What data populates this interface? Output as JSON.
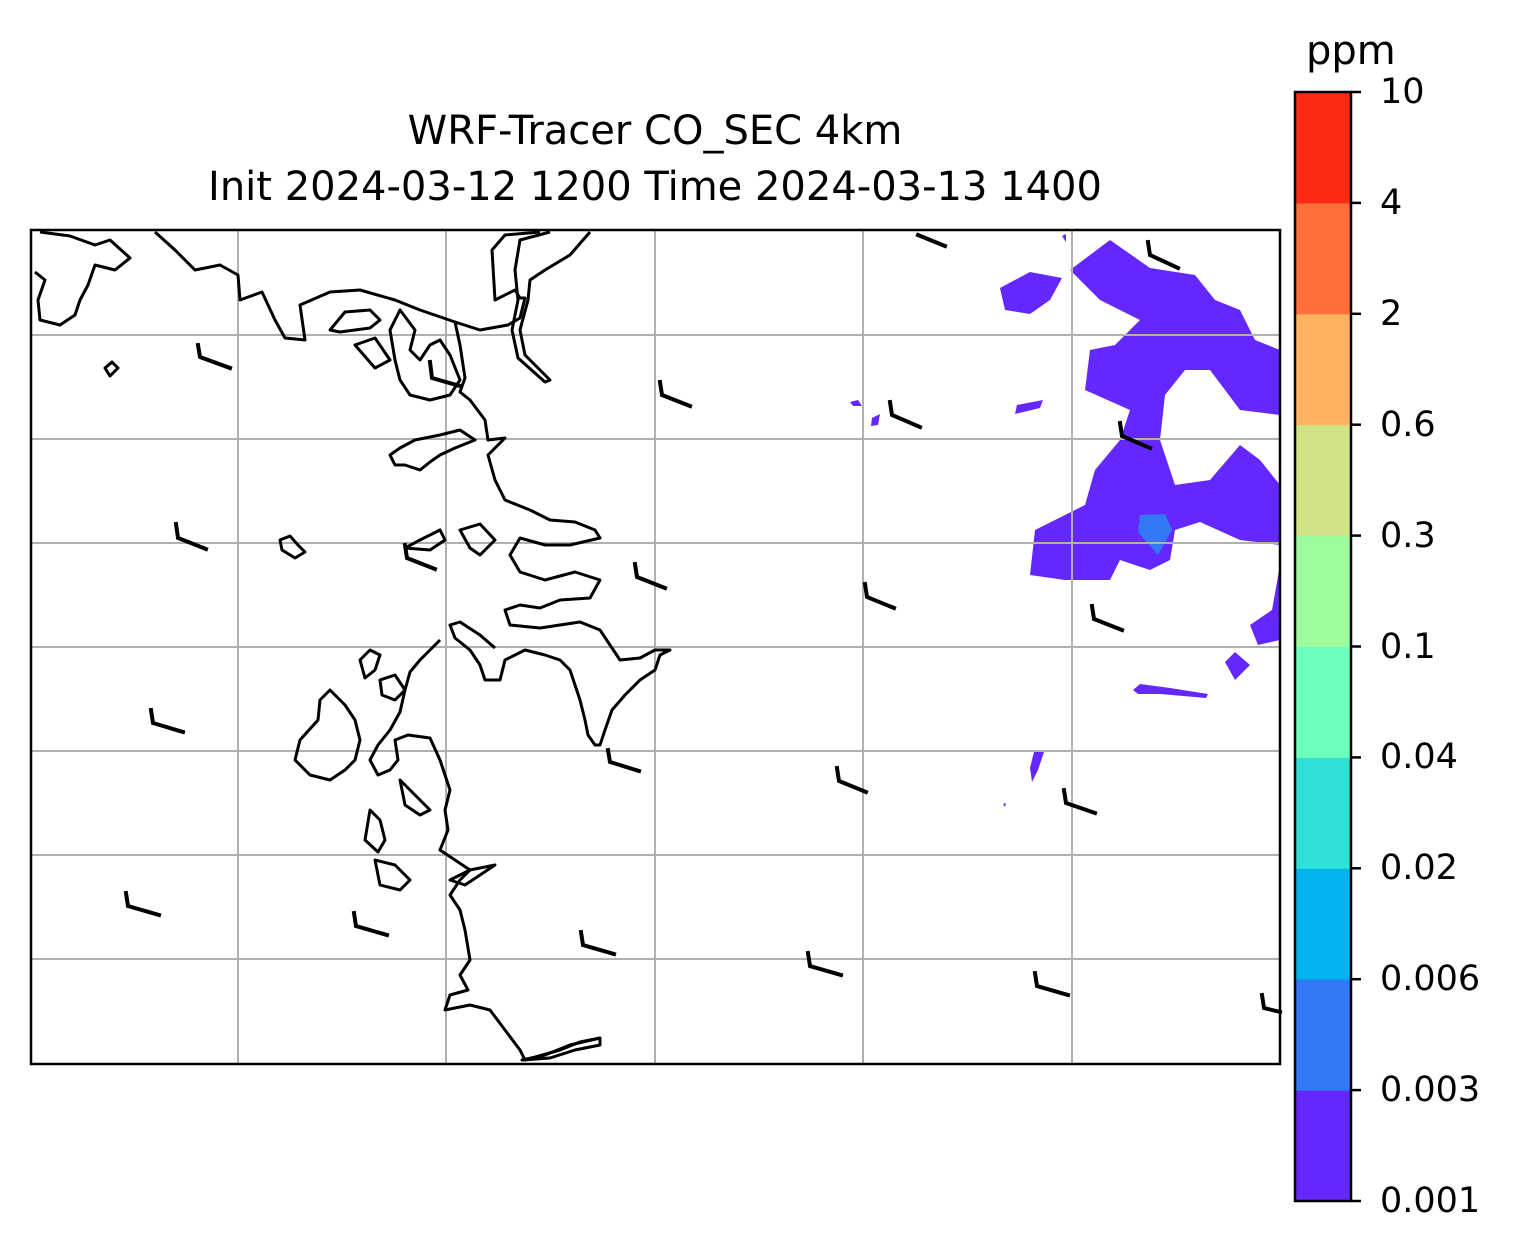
{
  "title": {
    "line1": "WRF-Tracer CO_SEC 4km",
    "line2": "Init 2024-03-12 1200 Time 2024-03-13 1400"
  },
  "colorbar": {
    "unit": "ppm",
    "levels": [
      "0.001",
      "0.003",
      "0.006",
      "0.02",
      "0.04",
      "0.1",
      "0.3",
      "0.6",
      "2",
      "4",
      "10"
    ],
    "colors": [
      "#6428ff",
      "#3478f6",
      "#02b4ee",
      "#2fe0d6",
      "#6dfdbd",
      "#9dfc9e",
      "#cfe286",
      "#ffb360",
      "#ff6f3b",
      "#ff2a14"
    ]
  },
  "map": {
    "gridlines": true,
    "tracer_fill_color": "#6428ff",
    "tracer_peak_color": "#3478f6",
    "wind_barbs": "present"
  }
}
